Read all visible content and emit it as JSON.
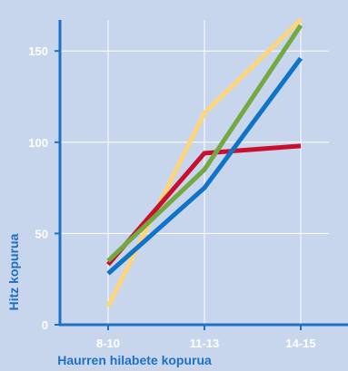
{
  "chart_data": {
    "type": "line",
    "title": "",
    "xlabel": "Haurren hilabete kopurua",
    "ylabel": "Hitz kopurua",
    "categories": [
      "8-10",
      "11-13",
      "14-15"
    ],
    "yticks": [
      0,
      50,
      100,
      150
    ],
    "ylim": [
      0,
      167
    ],
    "grid": true,
    "legend": "none",
    "series": [
      {
        "color": "#fdd57b",
        "values": [
          10,
          116,
          167
        ]
      },
      {
        "color": "#c8102e",
        "values": [
          33,
          94,
          98
        ]
      },
      {
        "color": "#74a841",
        "values": [
          35,
          85,
          164
        ]
      },
      {
        "color": "#0f73c8",
        "values": [
          28,
          75,
          146
        ]
      }
    ],
    "colors": {
      "background": "#c7d6ec",
      "axis": "#1f6fc4",
      "grid": "#ffffff",
      "tick_text": "#ffffff",
      "title_text": "#1f6fc4"
    }
  }
}
